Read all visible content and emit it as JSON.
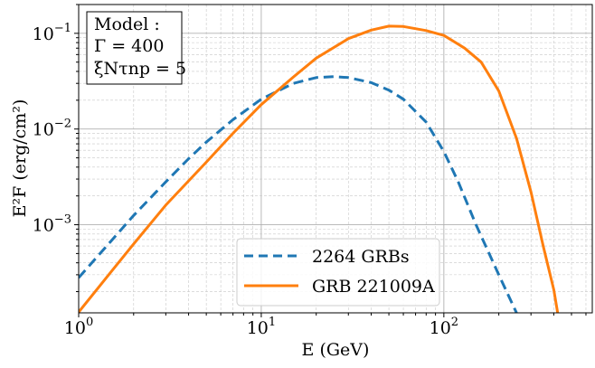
{
  "chart_data": {
    "type": "line",
    "xlabel": "E (GeV)",
    "ylabel": "E²F (erg/cm²)",
    "x_scale": "log",
    "y_scale": "log",
    "xlim": [
      1,
      650
    ],
    "ylim": [
      0.00012,
      0.2
    ],
    "grid": true,
    "legend_position": "bottom-center",
    "x_ticks": [
      {
        "value": 1,
        "base": "10",
        "exp": "0"
      },
      {
        "value": 10,
        "base": "10",
        "exp": "1"
      },
      {
        "value": 100,
        "base": "10",
        "exp": "2"
      }
    ],
    "y_ticks": [
      {
        "value": 0.1,
        "base": "10",
        "exp": "−1"
      },
      {
        "value": 0.01,
        "base": "10",
        "exp": "−2"
      },
      {
        "value": 0.001,
        "base": "10",
        "exp": "−3"
      }
    ],
    "annotation": {
      "lines": [
        "Model :",
        "Γ = 400",
        "ξNτnp = 5"
      ]
    },
    "series": [
      {
        "name": "2264 GRBs",
        "color": "#1f77b4",
        "style": "dashed",
        "points": [
          [
            1,
            0.00028
          ],
          [
            1.5,
            0.00067
          ],
          [
            2,
            0.00125
          ],
          [
            3,
            0.0028
          ],
          [
            4,
            0.0049
          ],
          [
            5,
            0.0073
          ],
          [
            7,
            0.0125
          ],
          [
            10,
            0.0205
          ],
          [
            15,
            0.03
          ],
          [
            20,
            0.0345
          ],
          [
            25,
            0.0353
          ],
          [
            30,
            0.0345
          ],
          [
            40,
            0.0305
          ],
          [
            50,
            0.0255
          ],
          [
            60,
            0.0205
          ],
          [
            80,
            0.0118
          ],
          [
            100,
            0.0058
          ],
          [
            120,
            0.0028
          ],
          [
            150,
            0.001
          ],
          [
            200,
            0.0003
          ],
          [
            250,
            0.00012
          ]
        ]
      },
      {
        "name": "GRB 221009A",
        "color": "#ff7f0e",
        "style": "solid",
        "points": [
          [
            1,
            0.000122
          ],
          [
            1.5,
            0.00032
          ],
          [
            2,
            0.00063
          ],
          [
            3,
            0.0016
          ],
          [
            5,
            0.0045
          ],
          [
            7,
            0.009
          ],
          [
            10,
            0.018
          ],
          [
            15,
            0.035
          ],
          [
            20,
            0.055
          ],
          [
            30,
            0.088
          ],
          [
            40,
            0.108
          ],
          [
            50,
            0.119
          ],
          [
            60,
            0.118
          ],
          [
            80,
            0.107
          ],
          [
            100,
            0.095
          ],
          [
            130,
            0.07
          ],
          [
            160,
            0.05
          ],
          [
            200,
            0.025
          ],
          [
            250,
            0.008
          ],
          [
            300,
            0.0022
          ],
          [
            350,
            0.0006
          ],
          [
            400,
            0.00021
          ],
          [
            420,
            0.00012
          ]
        ]
      }
    ]
  }
}
